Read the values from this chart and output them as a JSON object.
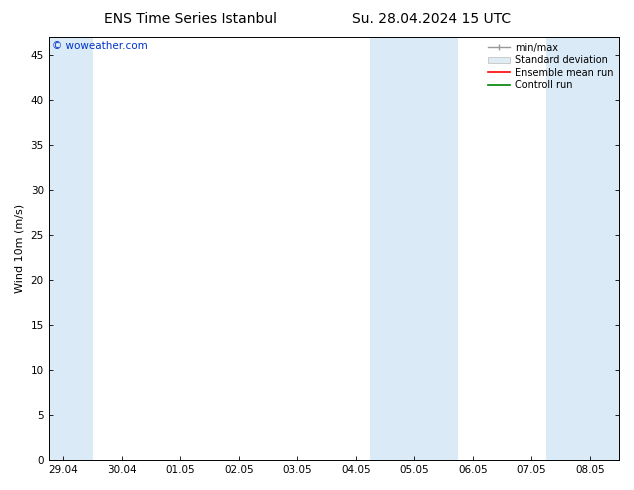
{
  "title_left": "ENS Time Series Istanbul",
  "title_right": "Su. 28.04.2024 15 UTC",
  "ylabel": "Wind 10m (m/s)",
  "ylim": [
    0,
    47
  ],
  "yticks": [
    0,
    5,
    10,
    15,
    20,
    25,
    30,
    35,
    40,
    45
  ],
  "x_start": "2024-04-29",
  "x_end": "2024-05-09",
  "x_tick_dates": [
    "2024-04-29",
    "2024-04-30",
    "2024-05-01",
    "2024-05-02",
    "2024-05-03",
    "2024-05-04",
    "2024-05-05",
    "2024-05-06",
    "2024-05-07",
    "2024-05-08"
  ],
  "x_tick_labels": [
    "29.04",
    "30.04",
    "01.05",
    "02.05",
    "03.05",
    "04.05",
    "05.05",
    "06.05",
    "07.05",
    "08.05"
  ],
  "shade_bands": [
    [
      "2024-04-28 18:00",
      "2024-04-29 12:00"
    ],
    [
      "2024-05-04 06:00",
      "2024-05-05 00:00"
    ],
    [
      "2024-05-05 00:00",
      "2024-05-05 18:00"
    ],
    [
      "2024-05-07 06:00",
      "2024-05-08 00:00"
    ],
    [
      "2024-05-08 00:00",
      "2024-05-08 18:00"
    ]
  ],
  "shade_color": "#daeaf6",
  "legend_labels": [
    "min/max",
    "Standard deviation",
    "Ensemble mean run",
    "Controll run"
  ],
  "legend_line_colors": [
    "#999999",
    "#cccccc",
    "#ff0000",
    "#008000"
  ],
  "watermark": "© woweather.com",
  "watermark_color": "#0033cc",
  "bg_color": "#ffffff",
  "title_fontsize": 10,
  "label_fontsize": 8,
  "tick_fontsize": 7.5
}
